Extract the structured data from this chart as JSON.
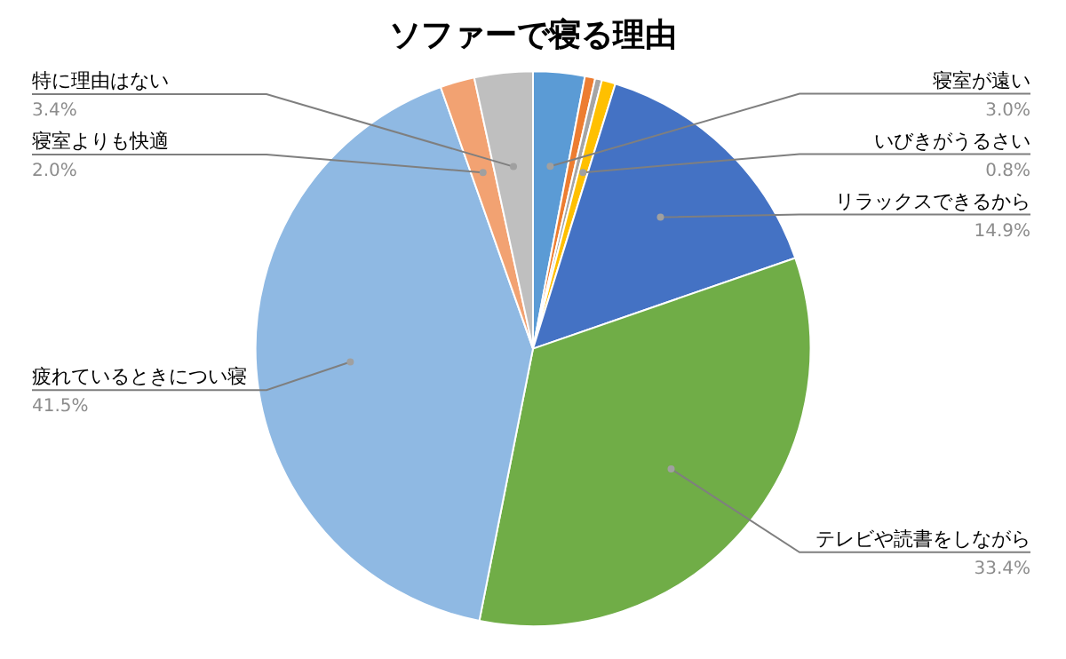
{
  "chart_data": {
    "type": "pie",
    "title": "ソファーで寝る理由",
    "categories": [
      "寝室が遠い",
      null,
      null,
      "いびきがうるさい",
      "リラックスできるから",
      "テレビや読書をしながら",
      "疲れているときについ寝",
      "寝室よりも快適",
      "特に理由はない"
    ],
    "values": [
      3.0,
      0.6,
      0.4,
      0.8,
      14.9,
      33.4,
      41.5,
      2.0,
      3.4
    ],
    "value_labels": [
      "3.0%",
      null,
      null,
      "0.8%",
      "14.9%",
      "33.4%",
      "41.5%",
      "2.0%",
      "3.4%"
    ],
    "colors": [
      "#5b9bd5",
      "#ed7d31",
      "#a5a5a5",
      "#ffc000",
      "#4472c4",
      "#70ad47",
      "#8fb9e3",
      "#f2a272",
      "#bfbfbf"
    ],
    "legend": false
  }
}
